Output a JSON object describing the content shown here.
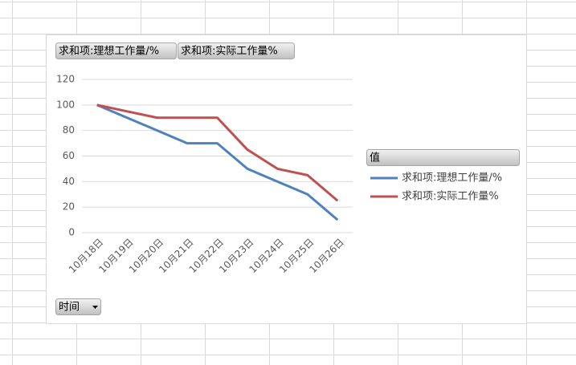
{
  "chart_data": {
    "type": "line",
    "categories": [
      "10月18日",
      "10月19日",
      "10月20日",
      "10月21日",
      "10月22日",
      "10月23日",
      "10月24日",
      "10月25日",
      "10月26日"
    ],
    "series": [
      {
        "name": "求和项:理想工作量/%",
        "color": "#4f81bd",
        "values": [
          100,
          90,
          80,
          70,
          70,
          50,
          40,
          30,
          10
        ]
      },
      {
        "name": "求和项:实际工作量%",
        "color": "#c0504d",
        "values": [
          100,
          95,
          90,
          90,
          90,
          65,
          50,
          45,
          25
        ]
      }
    ],
    "ylim": [
      0,
      120
    ],
    "yticks": [
      0,
      20,
      40,
      60,
      80,
      100,
      120
    ],
    "grid": true,
    "legend_title": "值",
    "axis_field_button": "时间",
    "legend": "right"
  }
}
